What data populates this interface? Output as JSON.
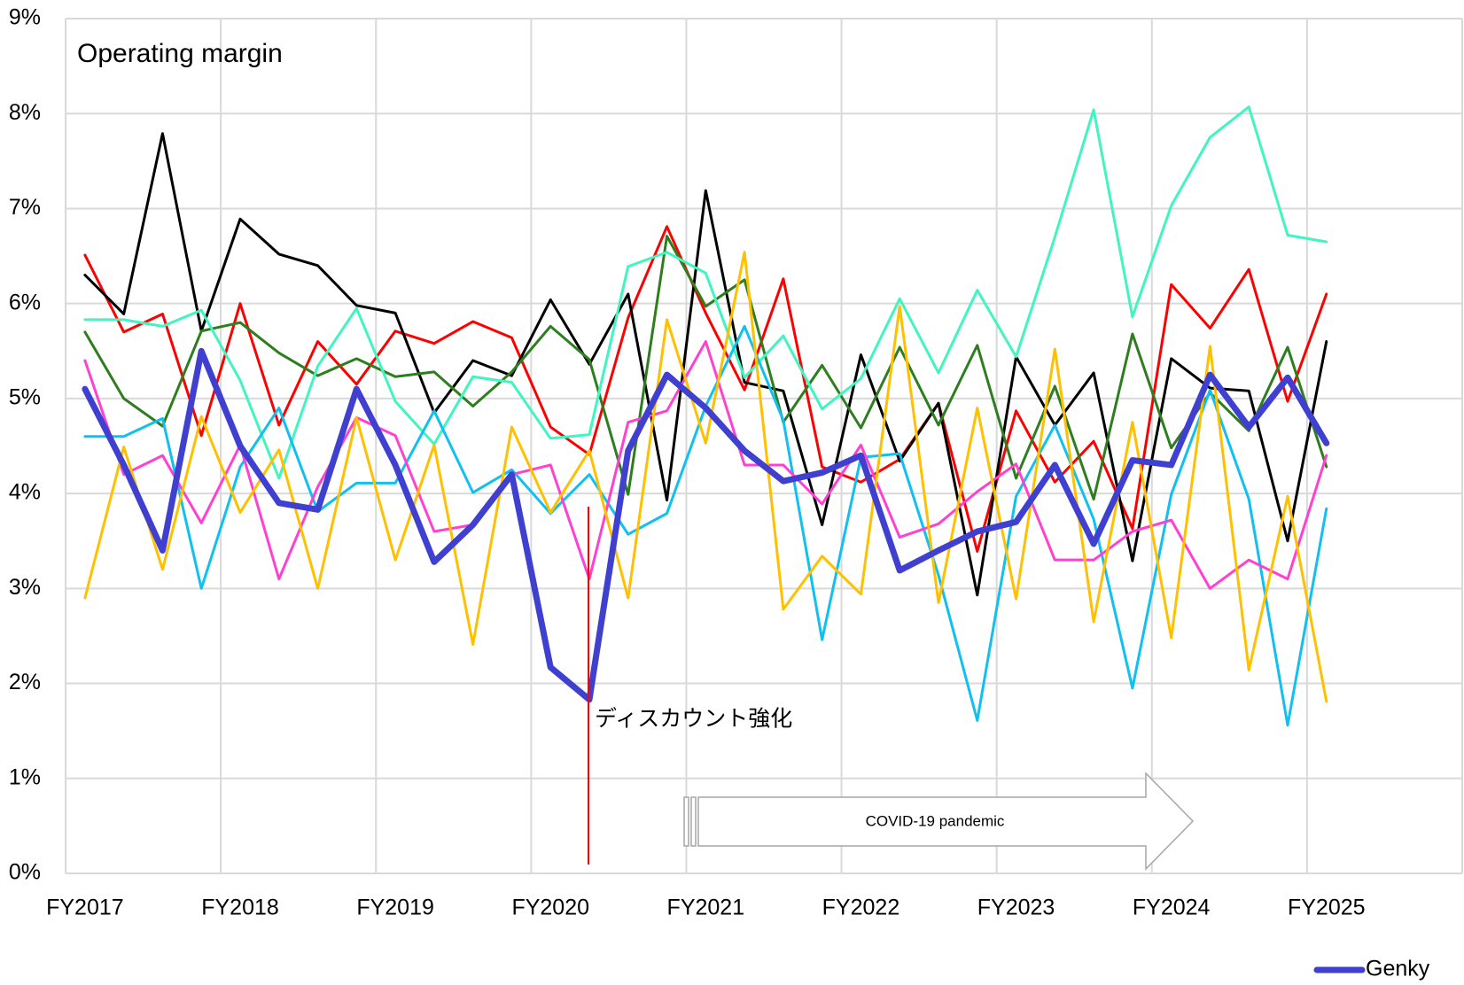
{
  "chart_data": {
    "type": "line",
    "title": "Operating margin",
    "categories": [
      "FY2017",
      null,
      null,
      null,
      "FY2018",
      null,
      null,
      null,
      "FY2019",
      null,
      null,
      null,
      "FY2020",
      null,
      null,
      null,
      "FY2021",
      null,
      null,
      null,
      "FY2022",
      null,
      null,
      null,
      "FY2023",
      null,
      null,
      null,
      "FY2024",
      null,
      null,
      null,
      "FY2025"
    ],
    "ylim": [
      0,
      9
    ],
    "yticks": [
      {
        "value": 0,
        "label": "0%"
      },
      {
        "value": 1,
        "label": "1%"
      },
      {
        "value": 2,
        "label": "2%"
      },
      {
        "value": 3,
        "label": "3%"
      },
      {
        "value": 4,
        "label": "4%"
      },
      {
        "value": 5,
        "label": "5%"
      },
      {
        "value": 6,
        "label": "6%"
      },
      {
        "value": 7,
        "label": "7%"
      },
      {
        "value": 8,
        "label": "8%"
      },
      {
        "value": 9,
        "label": "9%"
      }
    ],
    "grid": true,
    "legend": "bottom-right",
    "annotations": [
      {
        "text": "ディスカウント強化",
        "color": "#ff0000"
      },
      {
        "text": "COVID-19 pandemic",
        "color": "#a0a0a0"
      }
    ],
    "series": [
      {
        "color": "#ff0000",
        "width": 3,
        "values": [
          6.51,
          5.7,
          5.89,
          4.61,
          6.0,
          4.72,
          5.6,
          5.15,
          5.71,
          5.58,
          5.81,
          5.64,
          4.7,
          4.41,
          5.85,
          6.81,
          5.9,
          5.09,
          6.26,
          4.28,
          4.12,
          4.36,
          4.95,
          3.39,
          4.87,
          4.12,
          4.55,
          3.63,
          6.2,
          5.74,
          6.36,
          4.97,
          6.1
        ]
      },
      {
        "color": "#000000",
        "width": 3,
        "values": [
          6.3,
          5.89,
          7.79,
          5.71,
          6.89,
          6.52,
          6.4,
          5.98,
          5.9,
          4.85,
          5.4,
          5.24,
          6.04,
          5.36,
          6.1,
          3.93,
          7.19,
          5.17,
          5.08,
          3.67,
          5.46,
          4.34,
          4.95,
          2.93,
          5.44,
          4.72,
          5.27,
          3.29,
          5.42,
          5.11,
          5.08,
          3.5,
          5.6
        ]
      },
      {
        "color": "#2e7d1e",
        "width": 3,
        "values": [
          5.7,
          5.0,
          4.71,
          5.71,
          5.8,
          5.48,
          5.24,
          5.42,
          5.23,
          5.28,
          4.92,
          5.28,
          5.76,
          5.41,
          3.99,
          6.71,
          5.97,
          6.25,
          4.75,
          5.35,
          4.69,
          5.54,
          4.72,
          5.56,
          4.16,
          5.13,
          3.94,
          5.68,
          4.48,
          5.06,
          4.66,
          5.54,
          4.28
        ]
      },
      {
        "color": "#40f5c0",
        "width": 3,
        "values": [
          5.83,
          5.83,
          5.76,
          5.93,
          5.19,
          4.16,
          5.34,
          5.95,
          4.97,
          4.52,
          5.23,
          5.17,
          4.58,
          4.62,
          6.39,
          6.54,
          6.32,
          5.22,
          5.66,
          4.89,
          5.21,
          6.05,
          5.27,
          6.14,
          5.44,
          6.7,
          8.04,
          5.86,
          7.03,
          7.75,
          8.07,
          6.72,
          6.65
        ]
      },
      {
        "color": "#10c0f0",
        "width": 3,
        "values": [
          4.6,
          4.6,
          4.79,
          3.0,
          4.28,
          4.9,
          3.81,
          4.11,
          4.11,
          4.87,
          4.01,
          4.25,
          3.79,
          4.2,
          3.57,
          3.79,
          4.92,
          5.76,
          4.77,
          2.46,
          4.38,
          4.42,
          3.14,
          1.61,
          3.97,
          4.72,
          3.73,
          1.95,
          3.99,
          5.09,
          3.94,
          1.56,
          3.84
        ]
      },
      {
        "color": "#ff40d0",
        "width": 3,
        "values": [
          5.4,
          4.2,
          4.4,
          3.69,
          4.51,
          3.1,
          4.07,
          4.8,
          4.61,
          3.6,
          3.67,
          4.2,
          4.3,
          3.1,
          4.75,
          4.87,
          5.6,
          4.3,
          4.3,
          3.89,
          4.51,
          3.54,
          3.68,
          4.02,
          4.31,
          3.3,
          3.3,
          3.6,
          3.72,
          3.0,
          3.3,
          3.1,
          4.4
        ]
      },
      {
        "color": "#ffc000",
        "width": 3,
        "values": [
          2.9,
          4.49,
          3.2,
          4.81,
          3.8,
          4.46,
          3.0,
          4.8,
          3.3,
          4.51,
          2.41,
          4.7,
          3.8,
          4.45,
          2.9,
          5.83,
          4.53,
          6.54,
          2.78,
          3.34,
          2.94,
          5.97,
          2.85,
          4.9,
          2.89,
          5.52,
          2.65,
          4.75,
          2.48,
          5.55,
          2.14,
          3.97,
          1.81
        ]
      },
      {
        "name": "Genky",
        "color": "#4040d0",
        "width": 7,
        "values": [
          5.1,
          4.3,
          3.4,
          5.5,
          4.5,
          3.9,
          3.83,
          5.1,
          4.3,
          3.28,
          3.67,
          4.2,
          2.17,
          1.83,
          4.45,
          5.25,
          4.9,
          4.45,
          4.13,
          4.22,
          4.4,
          3.19,
          3.4,
          3.6,
          3.7,
          4.3,
          3.47,
          4.35,
          4.3,
          5.25,
          4.7,
          5.22,
          4.53
        ]
      }
    ]
  }
}
